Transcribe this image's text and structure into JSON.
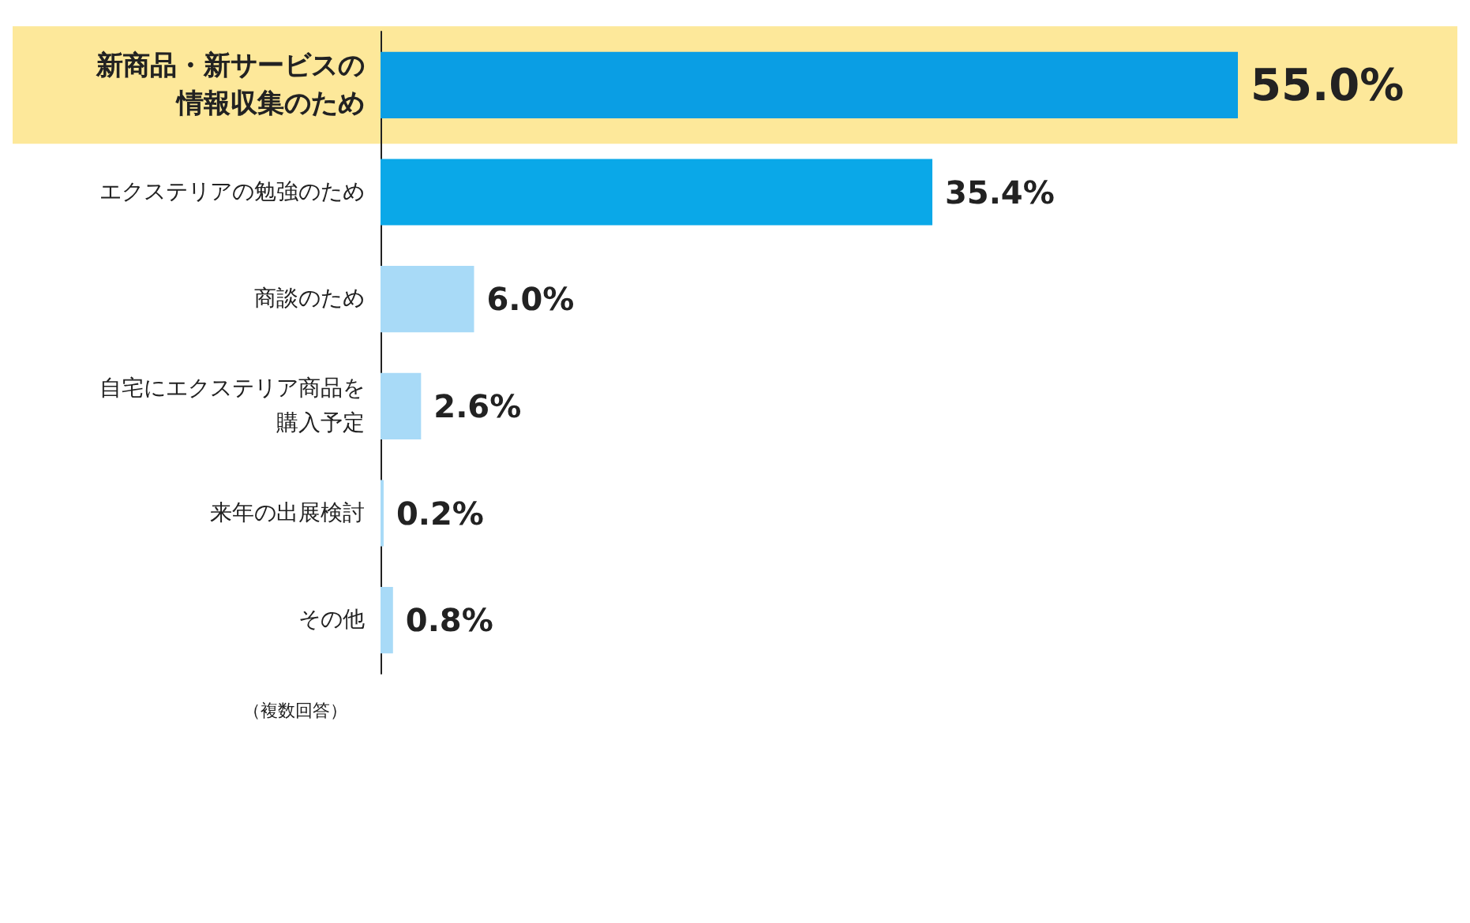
{
  "chart_data": {
    "type": "bar",
    "orientation": "horizontal",
    "categories": [
      "新商品・新サービスの情報収集のため",
      "エクステリアの勉強のため",
      "商談のため",
      "自宅にエクステリア商品を購入予定",
      "来年の出展検討",
      "その他"
    ],
    "values": [
      55.0,
      35.4,
      6.0,
      2.6,
      0.2,
      0.8
    ],
    "colors": [
      "#0a9ee4",
      "#0aa8e8",
      "#a8daf7",
      "#a8daf7",
      "#a8daf7",
      "#a8daf7"
    ],
    "value_labels": [
      "55.0%",
      "35.4%",
      "6.0%",
      "2.6%",
      "0.2%",
      "0.8%"
    ],
    "bands": [
      {
        "axis": "y",
        "from": "新商品・新サービスの情報収集のため",
        "to": "新商品・新サービスの情報収集のため",
        "color": "#fde89a"
      }
    ],
    "annotations": [
      "（複数回答）"
    ],
    "grid": false
  }
}
